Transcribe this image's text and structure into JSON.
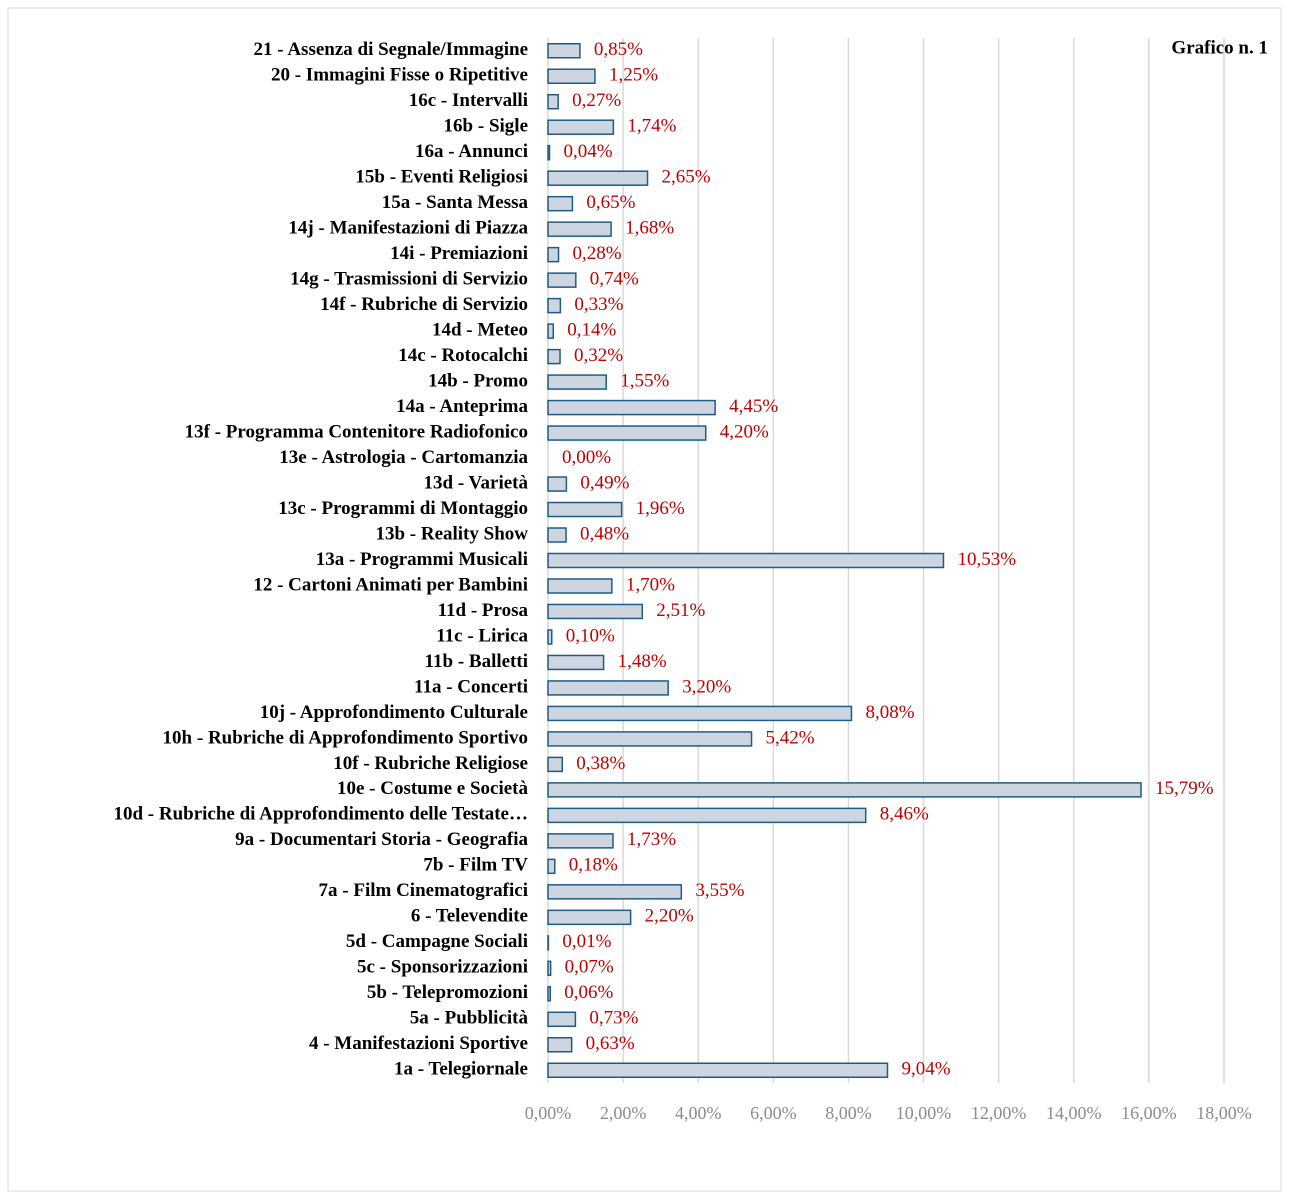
{
  "chart_data": {
    "type": "barh",
    "title": "Grafico n. 1",
    "categories": [
      "21 - Assenza di Segnale/Immagine",
      "20 - Immagini Fisse o Ripetitive",
      "16c - Intervalli",
      "16b - Sigle",
      "16a - Annunci",
      "15b - Eventi Religiosi",
      "15a - Santa Messa",
      "14j - Manifestazioni di Piazza",
      "14i - Premiazioni",
      "14g - Trasmissioni di Servizio",
      "14f - Rubriche di Servizio",
      "14d - Meteo",
      "14c - Rotocalchi",
      "14b - Promo",
      "14a - Anteprima",
      "13f - Programma Contenitore Radiofonico",
      "13e - Astrologia - Cartomanzia",
      "13d - Varietà",
      "13c - Programmi di Montaggio",
      "13b - Reality Show",
      "13a - Programmi Musicali",
      "12 - Cartoni Animati per Bambini",
      "11d - Prosa",
      "11c - Lirica",
      "11b - Balletti",
      "11a - Concerti",
      "10j - Approfondimento Culturale",
      "10h - Rubriche di Approfondimento Sportivo",
      "10f - Rubriche Religiose",
      "10e - Costume e Società",
      "10d - Rubriche di Approfondimento delle Testate…",
      "9a - Documentari Storia  - Geografia",
      "7b - Film TV",
      "7a - Film Cinematografici",
      "6 - Televendite",
      "5d - Campagne Sociali",
      "5c - Sponsorizzazioni",
      "5b - Telepromozioni",
      "5a - Pubblicità",
      "4 - Manifestazioni Sportive",
      "1a - Telegiornale"
    ],
    "values": [
      0.85,
      1.25,
      0.27,
      1.74,
      0.04,
      2.65,
      0.65,
      1.68,
      0.28,
      0.74,
      0.33,
      0.14,
      0.32,
      1.55,
      4.45,
      4.2,
      0.0,
      0.49,
      1.96,
      0.48,
      10.53,
      1.7,
      2.51,
      0.1,
      1.48,
      3.2,
      8.08,
      5.42,
      0.38,
      15.79,
      8.46,
      1.73,
      0.18,
      3.55,
      2.2,
      0.01,
      0.07,
      0.06,
      0.73,
      0.63,
      9.04
    ],
    "value_labels": [
      "0,85%",
      "1,25%",
      "0,27%",
      "1,74%",
      "0,04%",
      "2,65%",
      "0,65%",
      "1,68%",
      "0,28%",
      "0,74%",
      "0,33%",
      "0,14%",
      "0,32%",
      "1,55%",
      "4,45%",
      "4,20%",
      "0,00%",
      "0,49%",
      "1,96%",
      "0,48%",
      "10,53%",
      "1,70%",
      "2,51%",
      "0,10%",
      "1,48%",
      "3,20%",
      "8,08%",
      "5,42%",
      "0,38%",
      "15,79%",
      "8,46%",
      "1,73%",
      "0,18%",
      "3,55%",
      "2,20%",
      "0,01%",
      "0,07%",
      "0,06%",
      "0,73%",
      "0,63%",
      "9,04%"
    ],
    "color": "#cdd5e1",
    "edge_color": "#1f5c84",
    "label_color": "#c00000",
    "xlim": [
      0,
      18
    ],
    "xticks": [
      {
        "value": 0,
        "label": "0,00%"
      },
      {
        "value": 2,
        "label": "2,00%"
      },
      {
        "value": 4,
        "label": "4,00%"
      },
      {
        "value": 6,
        "label": "6,00%"
      },
      {
        "value": 8,
        "label": "8,00%"
      },
      {
        "value": 10,
        "label": "10,00%"
      },
      {
        "value": 12,
        "label": "12,00%"
      },
      {
        "value": 14,
        "label": "14,00%"
      },
      {
        "value": 16,
        "label": "16,00%"
      },
      {
        "value": 18,
        "label": "18,00%"
      }
    ],
    "grid": true
  }
}
